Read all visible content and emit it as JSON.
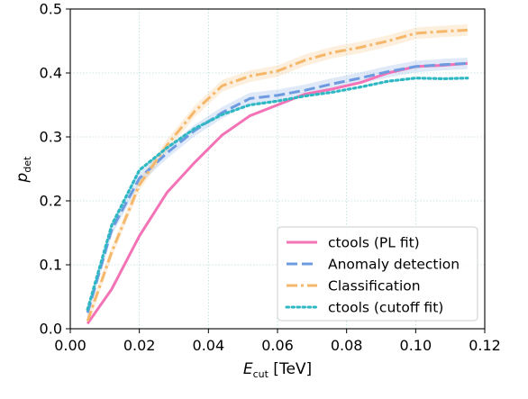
{
  "chart_data": {
    "type": "line",
    "xlabel": {
      "main": "E",
      "sub": "cut",
      "rest": " [TeV]"
    },
    "ylabel": {
      "main": "p",
      "sub": "det"
    },
    "xlim": [
      0.0,
      0.12
    ],
    "ylim": [
      0.0,
      0.5
    ],
    "xticks": [
      0.0,
      0.02,
      0.04,
      0.06,
      0.08,
      0.1,
      0.12
    ],
    "xtick_labels": [
      "0.00",
      "0.02",
      "0.04",
      "0.06",
      "0.08",
      "0.10",
      "0.12"
    ],
    "yticks": [
      0.0,
      0.1,
      0.2,
      0.3,
      0.4,
      0.5
    ],
    "ytick_labels": [
      "0.0",
      "0.1",
      "0.2",
      "0.3",
      "0.4",
      "0.5"
    ],
    "grid": true,
    "legend_position": "lower-right",
    "x": [
      0.005,
      0.012,
      0.02,
      0.028,
      0.036,
      0.044,
      0.052,
      0.06,
      0.068,
      0.076,
      0.084,
      0.092,
      0.1,
      0.108,
      0.115
    ],
    "series": [
      {
        "name": "ctools (PL fit)",
        "color": "#f472b6",
        "dash": "solid",
        "band": false,
        "values": [
          0.008,
          0.062,
          0.145,
          0.213,
          0.26,
          0.303,
          0.333,
          0.35,
          0.367,
          0.375,
          0.385,
          0.4,
          0.41,
          0.412,
          0.415
        ]
      },
      {
        "name": "Anomaly detection",
        "color": "#6e9be0",
        "dash": "dashed",
        "band": true,
        "values": [
          0.025,
          0.155,
          0.235,
          0.275,
          0.31,
          0.338,
          0.36,
          0.365,
          0.373,
          0.383,
          0.392,
          0.402,
          0.41,
          0.413,
          0.415
        ]
      },
      {
        "name": "Classification",
        "color": "#f5b86a",
        "dash": "dashdot",
        "band": true,
        "values": [
          0.012,
          0.12,
          0.225,
          0.287,
          0.34,
          0.38,
          0.395,
          0.403,
          0.42,
          0.432,
          0.44,
          0.45,
          0.462,
          0.465,
          0.467
        ]
      },
      {
        "name": "ctools (cutoff fit)",
        "color": "#2fb8c4",
        "dash": "dotted",
        "band": false,
        "values": [
          0.03,
          0.162,
          0.248,
          0.283,
          0.313,
          0.335,
          0.35,
          0.356,
          0.364,
          0.37,
          0.378,
          0.387,
          0.392,
          0.391,
          0.392
        ]
      }
    ]
  }
}
